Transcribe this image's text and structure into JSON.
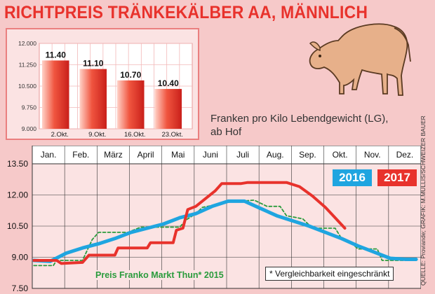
{
  "title": "RICHTPREIS TRÄNKEKÄLBER AA, MÄNNLICH",
  "unit_label_line1": "Franken pro Kilo Lebendgewicht (LG),",
  "unit_label_line2": "ab Hof",
  "source": "QUELLE: Proviande; GRAFIK: M.MULLIS/SCHWEIZER BAUER",
  "note": "* Vergleichbarkeit eingeschränkt",
  "colors": {
    "s2016": "#1fa5e0",
    "s2017": "#e8322c",
    "s2015": "#2a9b3c",
    "bar": "#e8322c"
  },
  "icon": "calf-illustration",
  "chart_data": [
    {
      "type": "bar",
      "categories": [
        "2.Okt.",
        "9.Okt.",
        "16.Okt.",
        "23.Okt."
      ],
      "values": [
        11.4,
        11.1,
        10.7,
        10.4
      ],
      "value_labels": [
        "11.40",
        "11.10",
        "10.70",
        "10.40"
      ],
      "ylim": [
        9.0,
        12.0
      ],
      "yticks": [
        9.0,
        9.75,
        10.5,
        11.25,
        12.0
      ],
      "ytick_labels": [
        "9.000",
        "9.750",
        "10.500",
        "11.250",
        "12.000"
      ],
      "grid": true
    },
    {
      "type": "line",
      "categories": [
        "Jan.",
        "Feb.",
        "März",
        "April",
        "Mai",
        "Juni",
        "Juli",
        "Aug.",
        "Sep.",
        "Okt.",
        "Nov.",
        "Dez."
      ],
      "ylim": [
        7.5,
        13.5
      ],
      "yticks": [
        7.5,
        9.0,
        10.5,
        12.0,
        13.5
      ],
      "ytick_labels": [
        "7.50",
        "9.00",
        "10.50",
        "12.00",
        "13.50"
      ],
      "grid": true,
      "legend": "top-right",
      "series": [
        {
          "name": "2016",
          "style": "solid",
          "points": [
            [
              0.0,
              8.85
            ],
            [
              0.5,
              8.8
            ],
            [
              1.0,
              9.2
            ],
            [
              1.5,
              9.45
            ],
            [
              2.0,
              9.65
            ],
            [
              2.5,
              9.9
            ],
            [
              3.0,
              10.2
            ],
            [
              3.5,
              10.4
            ],
            [
              4.0,
              10.6
            ],
            [
              4.5,
              10.9
            ],
            [
              5.0,
              11.1
            ],
            [
              5.5,
              11.45
            ],
            [
              6.0,
              11.7
            ],
            [
              6.5,
              11.7
            ],
            [
              7.0,
              11.35
            ],
            [
              7.5,
              11.0
            ],
            [
              8.0,
              10.75
            ],
            [
              8.5,
              10.5
            ],
            [
              9.0,
              10.2
            ],
            [
              9.5,
              9.9
            ],
            [
              10.0,
              9.55
            ],
            [
              10.5,
              9.25
            ],
            [
              11.0,
              8.95
            ],
            [
              11.5,
              8.9
            ],
            [
              11.8,
              8.9
            ]
          ]
        },
        {
          "name": "2017",
          "style": "solid",
          "points": [
            [
              0.0,
              8.85
            ],
            [
              0.7,
              8.85
            ],
            [
              0.85,
              8.7
            ],
            [
              1.5,
              8.75
            ],
            [
              1.7,
              9.1
            ],
            [
              2.5,
              9.1
            ],
            [
              2.6,
              9.45
            ],
            [
              3.5,
              9.45
            ],
            [
              3.6,
              9.7
            ],
            [
              4.3,
              9.7
            ],
            [
              4.4,
              10.3
            ],
            [
              4.6,
              10.4
            ],
            [
              4.75,
              11.3
            ],
            [
              5.0,
              11.45
            ],
            [
              5.6,
              12.2
            ],
            [
              5.8,
              12.55
            ],
            [
              6.4,
              12.55
            ],
            [
              6.6,
              12.6
            ],
            [
              7.8,
              12.6
            ],
            [
              8.2,
              12.4
            ],
            [
              8.6,
              11.95
            ],
            [
              9.0,
              11.4
            ],
            [
              9.3,
              10.9
            ],
            [
              9.6,
              10.4
            ]
          ]
        },
        {
          "name": "Preis Franko Markt Thun* 2015",
          "style": "dashed",
          "points": [
            [
              0.0,
              8.6
            ],
            [
              0.6,
              8.6
            ],
            [
              0.7,
              8.85
            ],
            [
              1.5,
              8.85
            ],
            [
              1.8,
              9.85
            ],
            [
              2.0,
              10.2
            ],
            [
              2.9,
              10.2
            ],
            [
              3.3,
              10.45
            ],
            [
              4.5,
              10.45
            ],
            [
              4.7,
              10.8
            ],
            [
              5.0,
              11.1
            ],
            [
              5.2,
              11.4
            ],
            [
              6.0,
              11.65
            ],
            [
              6.8,
              11.75
            ],
            [
              7.2,
              11.45
            ],
            [
              7.6,
              11.45
            ],
            [
              7.8,
              11.0
            ],
            [
              8.3,
              10.85
            ],
            [
              8.6,
              10.4
            ],
            [
              9.3,
              10.4
            ],
            [
              9.5,
              9.9
            ],
            [
              9.8,
              9.7
            ],
            [
              10.0,
              9.4
            ],
            [
              10.6,
              9.4
            ],
            [
              10.75,
              8.85
            ],
            [
              11.8,
              8.85
            ]
          ]
        }
      ]
    }
  ]
}
